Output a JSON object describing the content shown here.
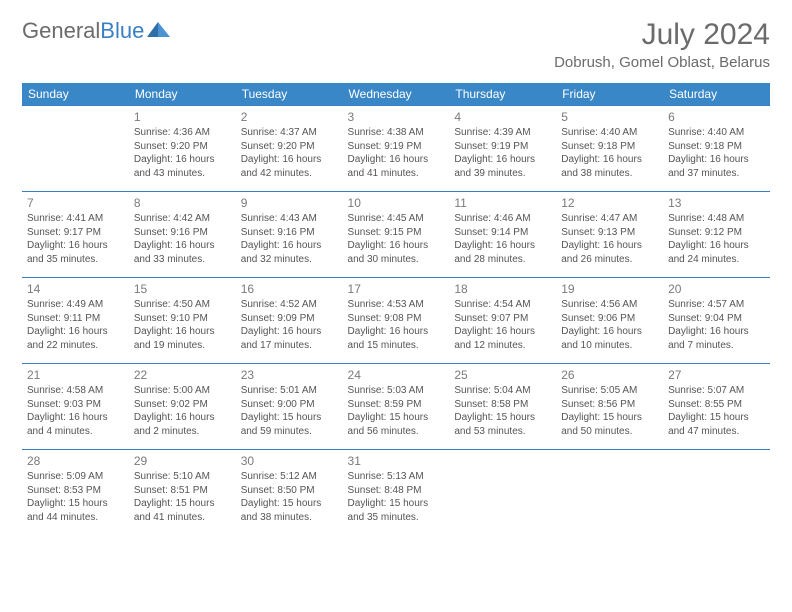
{
  "brand": {
    "part1": "General",
    "part2": "Blue"
  },
  "title": "July 2024",
  "location": "Dobrush, Gomel Oblast, Belarus",
  "colors": {
    "header_bg": "#3a87c7",
    "header_text": "#ffffff",
    "border": "#3a7fc4",
    "text": "#555555",
    "daynum": "#7a7a7a",
    "brand_gray": "#6b6b6b",
    "brand_blue": "#3a7fc4",
    "page_bg": "#ffffff"
  },
  "day_names": [
    "Sunday",
    "Monday",
    "Tuesday",
    "Wednesday",
    "Thursday",
    "Friday",
    "Saturday"
  ],
  "start_offset": 1,
  "days": [
    {
      "n": 1,
      "sunrise": "4:36 AM",
      "sunset": "9:20 PM",
      "daylight": "16 hours and 43 minutes."
    },
    {
      "n": 2,
      "sunrise": "4:37 AM",
      "sunset": "9:20 PM",
      "daylight": "16 hours and 42 minutes."
    },
    {
      "n": 3,
      "sunrise": "4:38 AM",
      "sunset": "9:19 PM",
      "daylight": "16 hours and 41 minutes."
    },
    {
      "n": 4,
      "sunrise": "4:39 AM",
      "sunset": "9:19 PM",
      "daylight": "16 hours and 39 minutes."
    },
    {
      "n": 5,
      "sunrise": "4:40 AM",
      "sunset": "9:18 PM",
      "daylight": "16 hours and 38 minutes."
    },
    {
      "n": 6,
      "sunrise": "4:40 AM",
      "sunset": "9:18 PM",
      "daylight": "16 hours and 37 minutes."
    },
    {
      "n": 7,
      "sunrise": "4:41 AM",
      "sunset": "9:17 PM",
      "daylight": "16 hours and 35 minutes."
    },
    {
      "n": 8,
      "sunrise": "4:42 AM",
      "sunset": "9:16 PM",
      "daylight": "16 hours and 33 minutes."
    },
    {
      "n": 9,
      "sunrise": "4:43 AM",
      "sunset": "9:16 PM",
      "daylight": "16 hours and 32 minutes."
    },
    {
      "n": 10,
      "sunrise": "4:45 AM",
      "sunset": "9:15 PM",
      "daylight": "16 hours and 30 minutes."
    },
    {
      "n": 11,
      "sunrise": "4:46 AM",
      "sunset": "9:14 PM",
      "daylight": "16 hours and 28 minutes."
    },
    {
      "n": 12,
      "sunrise": "4:47 AM",
      "sunset": "9:13 PM",
      "daylight": "16 hours and 26 minutes."
    },
    {
      "n": 13,
      "sunrise": "4:48 AM",
      "sunset": "9:12 PM",
      "daylight": "16 hours and 24 minutes."
    },
    {
      "n": 14,
      "sunrise": "4:49 AM",
      "sunset": "9:11 PM",
      "daylight": "16 hours and 22 minutes."
    },
    {
      "n": 15,
      "sunrise": "4:50 AM",
      "sunset": "9:10 PM",
      "daylight": "16 hours and 19 minutes."
    },
    {
      "n": 16,
      "sunrise": "4:52 AM",
      "sunset": "9:09 PM",
      "daylight": "16 hours and 17 minutes."
    },
    {
      "n": 17,
      "sunrise": "4:53 AM",
      "sunset": "9:08 PM",
      "daylight": "16 hours and 15 minutes."
    },
    {
      "n": 18,
      "sunrise": "4:54 AM",
      "sunset": "9:07 PM",
      "daylight": "16 hours and 12 minutes."
    },
    {
      "n": 19,
      "sunrise": "4:56 AM",
      "sunset": "9:06 PM",
      "daylight": "16 hours and 10 minutes."
    },
    {
      "n": 20,
      "sunrise": "4:57 AM",
      "sunset": "9:04 PM",
      "daylight": "16 hours and 7 minutes."
    },
    {
      "n": 21,
      "sunrise": "4:58 AM",
      "sunset": "9:03 PM",
      "daylight": "16 hours and 4 minutes."
    },
    {
      "n": 22,
      "sunrise": "5:00 AM",
      "sunset": "9:02 PM",
      "daylight": "16 hours and 2 minutes."
    },
    {
      "n": 23,
      "sunrise": "5:01 AM",
      "sunset": "9:00 PM",
      "daylight": "15 hours and 59 minutes."
    },
    {
      "n": 24,
      "sunrise": "5:03 AM",
      "sunset": "8:59 PM",
      "daylight": "15 hours and 56 minutes."
    },
    {
      "n": 25,
      "sunrise": "5:04 AM",
      "sunset": "8:58 PM",
      "daylight": "15 hours and 53 minutes."
    },
    {
      "n": 26,
      "sunrise": "5:05 AM",
      "sunset": "8:56 PM",
      "daylight": "15 hours and 50 minutes."
    },
    {
      "n": 27,
      "sunrise": "5:07 AM",
      "sunset": "8:55 PM",
      "daylight": "15 hours and 47 minutes."
    },
    {
      "n": 28,
      "sunrise": "5:09 AM",
      "sunset": "8:53 PM",
      "daylight": "15 hours and 44 minutes."
    },
    {
      "n": 29,
      "sunrise": "5:10 AM",
      "sunset": "8:51 PM",
      "daylight": "15 hours and 41 minutes."
    },
    {
      "n": 30,
      "sunrise": "5:12 AM",
      "sunset": "8:50 PM",
      "daylight": "15 hours and 38 minutes."
    },
    {
      "n": 31,
      "sunrise": "5:13 AM",
      "sunset": "8:48 PM",
      "daylight": "15 hours and 35 minutes."
    }
  ],
  "labels": {
    "sunrise": "Sunrise:",
    "sunset": "Sunset:",
    "daylight": "Daylight:"
  }
}
